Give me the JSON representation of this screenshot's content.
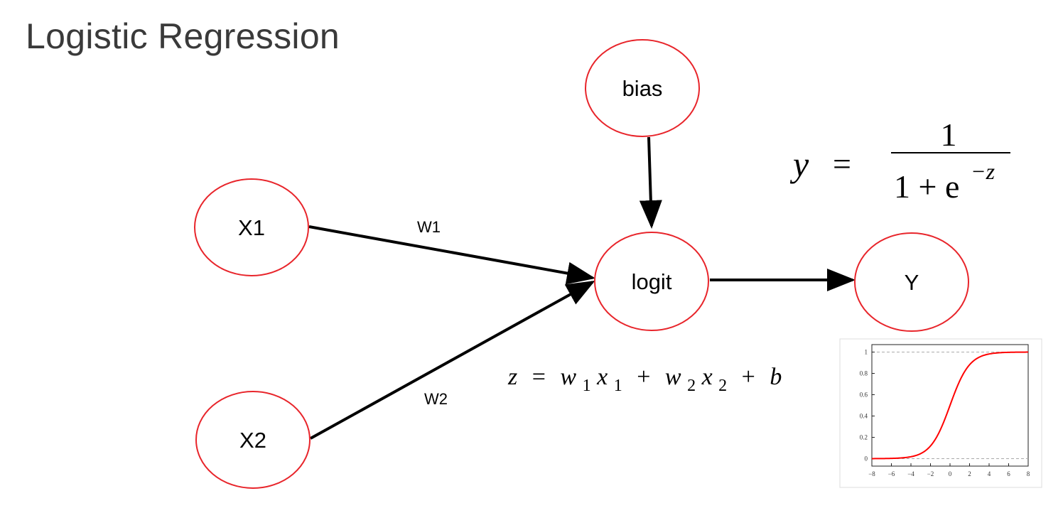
{
  "title": "Logistic Regression",
  "nodes": {
    "x1": "X1",
    "x2": "X2",
    "bias": "bias",
    "logit": "logit",
    "y": "Y"
  },
  "edges": {
    "w1": "W1",
    "w2": "W2"
  },
  "formulas": {
    "sigmoid": {
      "lhs": "y",
      "eq": "=",
      "numerator": "1",
      "denominator_base": "1 + e",
      "exponent": "−z"
    },
    "linear": {
      "z": "z",
      "eq": "=",
      "w1": "w",
      "w1_sub": "1",
      "x1": "x",
      "x1_sub": "1",
      "plus1": "+",
      "w2": "w",
      "w2_sub": "2",
      "x2": "x",
      "x2_sub": "2",
      "plus2": "+",
      "b": "b"
    }
  },
  "colors": {
    "node_stroke": "#e8252b",
    "arrow": "#000000",
    "curve": "#ff0000",
    "title": "#3a3a3a"
  },
  "chart_data": {
    "type": "line",
    "function": "sigmoid",
    "x_ticks": [
      "−8",
      "−6",
      "−4",
      "−2",
      "0",
      "2",
      "4",
      "6",
      "8"
    ],
    "y_ticks": [
      "0",
      "0.2",
      "0.4",
      "0.6",
      "0.8",
      "1"
    ],
    "xlim": [
      -8,
      8
    ],
    "ylim": [
      -0.07,
      1.07
    ],
    "reference_lines_y": [
      0,
      1
    ],
    "series": [
      {
        "x": [
          -8,
          -7,
          -6,
          -5,
          -4,
          -3,
          -2,
          -1,
          0,
          1,
          2,
          3,
          4,
          5,
          6,
          7,
          8
        ],
        "y": [
          0.0003,
          0.0009,
          0.0025,
          0.0067,
          0.018,
          0.0474,
          0.1192,
          0.2689,
          0.5,
          0.7311,
          0.8808,
          0.9526,
          0.982,
          0.9933,
          0.9975,
          0.9991,
          0.9997
        ]
      }
    ]
  }
}
